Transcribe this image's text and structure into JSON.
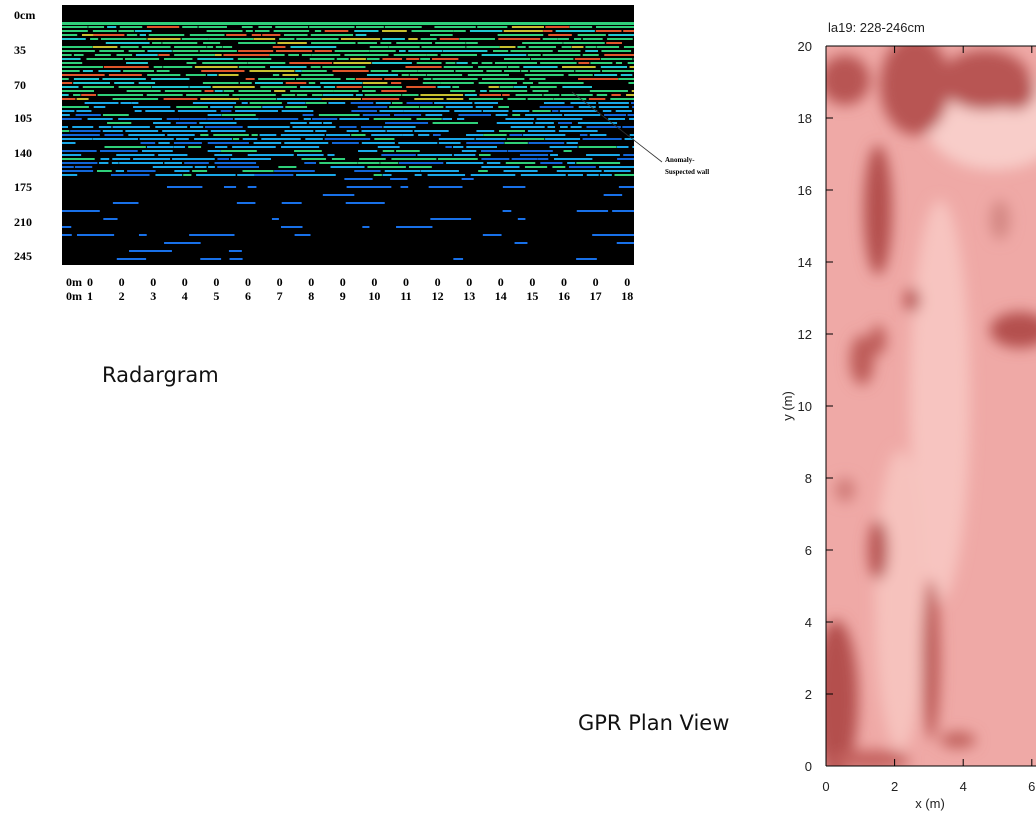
{
  "radargram": {
    "depth_labels": [
      "0cm",
      "35",
      "70",
      "105",
      "140",
      "175",
      "210",
      "245"
    ],
    "distance_top": [
      "0m",
      "0",
      "0",
      "0",
      "0",
      "0",
      "0",
      "0",
      "0",
      "0",
      "0",
      "0",
      "0",
      "0",
      "0",
      "0",
      "0",
      "0",
      "0"
    ],
    "distance_bottom": [
      "0m",
      "1",
      "2",
      "3",
      "4",
      "5",
      "6",
      "7",
      "8",
      "9",
      "10",
      "11",
      "12",
      "13",
      "14",
      "15",
      "16",
      "17",
      "18"
    ],
    "annotation": [
      "Anomaly-",
      "Suspected wall"
    ],
    "caption": "Radargram"
  },
  "plan_view": {
    "title": "la19: 228-246cm",
    "xlabel": "x (m)",
    "ylabel": "y (m)",
    "xticks": [
      0,
      2,
      4,
      6
    ],
    "yticks": [
      0,
      2,
      4,
      6,
      8,
      10,
      12,
      14,
      16,
      18,
      20
    ],
    "caption": "GPR Plan View"
  }
}
